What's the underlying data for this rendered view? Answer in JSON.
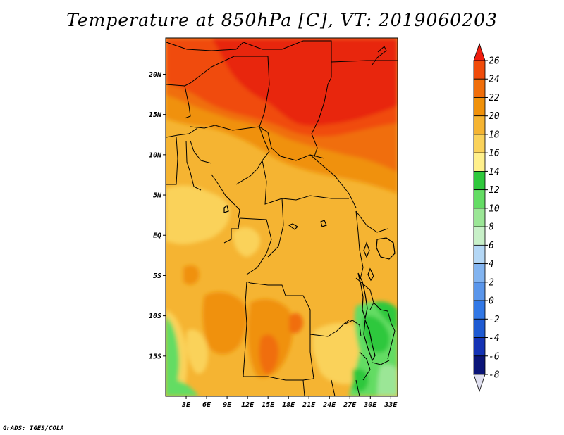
{
  "title": "Temperature at 850hPa [C], VT: 2019060203",
  "footer": "GrADS: IGES/COLA",
  "map": {
    "lon_range": [
      0,
      34
    ],
    "lat_range": [
      -20,
      24.5
    ],
    "lat_ticks": [
      "20N",
      "15N",
      "10N",
      "5N",
      "EQ",
      "5S",
      "10S",
      "15S"
    ],
    "lat_tick_values": [
      20,
      15,
      10,
      5,
      0,
      -5,
      -10,
      -15
    ],
    "lon_ticks": [
      "3E",
      "6E",
      "9E",
      "12E",
      "15E",
      "18E",
      "21E",
      "24E",
      "27E",
      "30E",
      "33E"
    ],
    "lon_tick_values": [
      3,
      6,
      9,
      12,
      15,
      18,
      21,
      24,
      27,
      30,
      33
    ]
  },
  "colorbar": {
    "levels": [
      "26",
      "24",
      "22",
      "20",
      "18",
      "16",
      "14",
      "12",
      "10",
      "8",
      "6",
      "4",
      "2",
      "0",
      "-2",
      "-4",
      "-6",
      "-8"
    ],
    "colors": [
      "#f01e0f",
      "#f04b0a",
      "#f06e0a",
      "#f0910a",
      "#f5b432",
      "#fad25a",
      "#fff08c",
      "#2ec83c",
      "#64dc64",
      "#9be696",
      "#c8f0c8",
      "#b4d7f5",
      "#82b4f0",
      "#5a96eb",
      "#3278e6",
      "#1e5ad2",
      "#1432b4",
      "#0a1478",
      "#e0e0f0"
    ]
  }
}
